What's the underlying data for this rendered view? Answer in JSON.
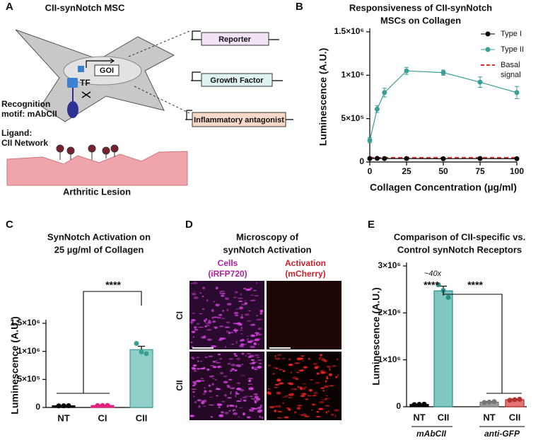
{
  "panels": [
    "A",
    "B",
    "C",
    "D",
    "E"
  ],
  "diagram": {
    "title": "CII-synNotch MSC",
    "goi": "GOI",
    "tf": "TF",
    "recognition": [
      "Recognition",
      "motif: mAbCII"
    ],
    "ligand": [
      "Ligand:",
      "CII Network"
    ],
    "lesion": "Arthritic Lesion",
    "constructs": [
      "Reporter",
      "Growth Factor",
      "Inflammatory antagonist"
    ]
  },
  "microscopy": {
    "title": [
      "Microscopy of",
      "synNotch Activation"
    ],
    "columns": [
      [
        "Cells",
        "(iRFP720)"
      ],
      [
        "Activation",
        "(mCherry)"
      ]
    ],
    "rows": [
      "CI",
      "CII"
    ]
  },
  "chart_data": [
    {
      "type": "line",
      "title": [
        "Responsiveness of CII-synNotch",
        "MSCs on Collagen"
      ],
      "x_label": "Collagen Concentration (µg/ml)",
      "y_label": "Luminescence (A.U.)",
      "x": [
        0,
        5,
        10,
        25,
        50,
        75,
        100
      ],
      "series": [
        {
          "name": "Type I",
          "color": "#000000",
          "values": [
            40000,
            42000,
            40000,
            40000,
            38000,
            40000,
            38000
          ]
        },
        {
          "name": "Type II",
          "color": "#3a9e97",
          "values": [
            250000,
            610000,
            800000,
            1050000,
            1030000,
            920000,
            800000
          ],
          "errors": [
            30000,
            40000,
            50000,
            40000,
            30000,
            60000,
            70000
          ]
        }
      ],
      "reference_lines": [
        {
          "name": [
            "Basal",
            "signal"
          ],
          "value": 50000,
          "color": "#e3302c"
        }
      ],
      "xlim": [
        0,
        100
      ],
      "xticks": [
        0,
        25,
        50,
        75,
        100
      ],
      "ylim": [
        0,
        1500000
      ],
      "yticks": [
        0,
        {
          "value": 500000,
          "label": "5×10⁵"
        },
        {
          "value": 1000000,
          "label": "1×10⁶"
        },
        {
          "value": 1500000,
          "label": "1.5×10⁶"
        }
      ]
    },
    {
      "type": "bar",
      "title": [
        "SynNotch Activation on",
        "25 µg/ml of Collagen"
      ],
      "y_label": "Luminescence (A.U.)",
      "categories": [
        "NT",
        "CI",
        "CII"
      ],
      "values": [
        30000,
        35000,
        1030000
      ],
      "errors": [
        5000,
        5000,
        60000
      ],
      "points": [
        [
          28000,
          30000,
          32000
        ],
        [
          33000,
          35000,
          37000
        ],
        [
          1140000,
          990000,
          960000
        ]
      ],
      "colors": [
        "#000000",
        "#e4217e",
        "#8fcfc8"
      ],
      "edge_colors": [
        "#000000",
        "#e4217e",
        "#3a9e97"
      ],
      "annotations": [
        "****"
      ],
      "ylim": [
        0,
        1500000
      ],
      "yticks": [
        0,
        {
          "value": 500000,
          "label": "5×10⁵"
        },
        {
          "value": 1000000,
          "label": "1×10⁶"
        },
        {
          "value": 1500000,
          "label": "1.5×10⁶"
        }
      ]
    },
    {
      "type": "bar",
      "title": [
        "Comparison of CII-specific vs.",
        "Control synNotch Receptors"
      ],
      "y_label": "Luminescence (A.U.)",
      "categories": [
        "NT",
        "CII",
        "NT",
        "CII"
      ],
      "group_labels": [
        "mAbCII",
        "anti-GFP"
      ],
      "values": [
        50000,
        2470000,
        100000,
        150000
      ],
      "errors": [
        5000,
        100000,
        10000,
        15000
      ],
      "points": [
        [
          45000,
          50000,
          55000
        ],
        [
          2600000,
          2480000,
          2330000
        ],
        [
          90000,
          100000,
          110000
        ],
        [
          140000,
          150000,
          160000
        ]
      ],
      "colors": [
        "#000000",
        "#7fc7c0",
        "#9a9a9a",
        "#e57373"
      ],
      "edge_colors": [
        "#000000",
        "#2a8f88",
        "#777777",
        "#b03030"
      ],
      "annotations": [
        "~40x",
        "****",
        "****"
      ],
      "ylim": [
        0,
        3000000
      ],
      "yticks": [
        0,
        {
          "value": 1000000,
          "label": "1×10⁶"
        },
        {
          "value": 2000000,
          "label": "2×10⁶"
        },
        {
          "value": 3000000,
          "label": "3×10⁶"
        }
      ]
    }
  ]
}
